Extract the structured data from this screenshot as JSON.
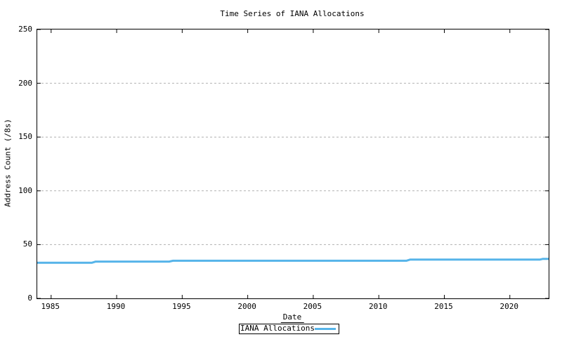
{
  "chart_data": {
    "type": "line",
    "title": "Time Series of IANA Allocations",
    "xlabel": "Date",
    "ylabel": "Address Count (/8s)",
    "xlim": [
      1983.94,
      2022.96
    ],
    "ylim": [
      0,
      250
    ],
    "xticks": [
      1985,
      1990,
      1995,
      2000,
      2005,
      2010,
      2015,
      2020
    ],
    "yticks": [
      0,
      50,
      100,
      150,
      200,
      250
    ],
    "grid": "horizontal dotted gridlines at y ticks, mirrored inward axis ticks on all four sides",
    "legend_position": "boxed, centered below x-axis label",
    "series": [
      {
        "name": "IANA Allocations",
        "color": "#56b4e9",
        "line_width": 3,
        "points": [
          [
            1983.94,
            33.1
          ],
          [
            1988.1,
            33.1
          ],
          [
            1988.4,
            34.2
          ],
          [
            1994.0,
            34.2
          ],
          [
            1994.3,
            35.0
          ],
          [
            2012.1,
            35.0
          ],
          [
            2012.4,
            36.1
          ],
          [
            2022.3,
            36.1
          ],
          [
            2022.5,
            36.7
          ],
          [
            2022.96,
            36.7
          ]
        ]
      }
    ]
  },
  "colors": {
    "background": "#ffffff",
    "axis_frame": "#000000",
    "gridline": "#b0b0b0",
    "series_line": "#56b4e9",
    "text": "#000000"
  }
}
